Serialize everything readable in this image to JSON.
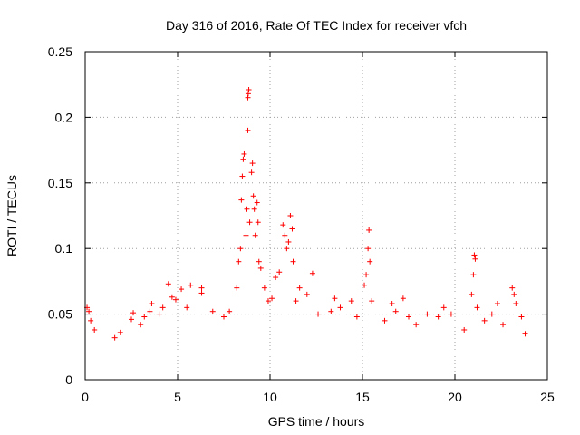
{
  "chart_data": {
    "type": "scatter",
    "title": "Day 316 of 2016, Rate Of TEC Index for receiver vfch",
    "xlabel": "GPS time / hours",
    "ylabel": "ROTI / TECUs",
    "xlim": [
      0,
      25
    ],
    "ylim": [
      0,
      0.25
    ],
    "x_ticks": [
      0,
      5,
      10,
      15,
      20,
      25
    ],
    "x_tick_labels": [
      "0",
      "5",
      "10",
      "15",
      "20",
      "25"
    ],
    "y_ticks": [
      0,
      0.05,
      0.1,
      0.15,
      0.2,
      0.25
    ],
    "y_tick_labels": [
      "0",
      "0.05",
      "0.1",
      "0.15",
      "0.2",
      "0.25"
    ],
    "grid": true,
    "marker": "+",
    "marker_color": "#ff0000",
    "series": [
      {
        "name": "ROTI",
        "points": [
          [
            0.1,
            0.055
          ],
          [
            0.2,
            0.052
          ],
          [
            0.3,
            0.045
          ],
          [
            0.5,
            0.038
          ],
          [
            1.6,
            0.032
          ],
          [
            1.9,
            0.036
          ],
          [
            2.5,
            0.046
          ],
          [
            2.6,
            0.051
          ],
          [
            3.0,
            0.042
          ],
          [
            3.2,
            0.048
          ],
          [
            3.6,
            0.058
          ],
          [
            3.5,
            0.052
          ],
          [
            4.0,
            0.05
          ],
          [
            4.2,
            0.055
          ],
          [
            4.5,
            0.073
          ],
          [
            4.7,
            0.063
          ],
          [
            4.9,
            0.061
          ],
          [
            5.2,
            0.069
          ],
          [
            5.5,
            0.055
          ],
          [
            5.7,
            0.072
          ],
          [
            6.3,
            0.066
          ],
          [
            6.3,
            0.07
          ],
          [
            6.9,
            0.052
          ],
          [
            7.5,
            0.048
          ],
          [
            7.8,
            0.052
          ],
          [
            8.2,
            0.07
          ],
          [
            8.3,
            0.09
          ],
          [
            8.4,
            0.1
          ],
          [
            8.45,
            0.137
          ],
          [
            8.5,
            0.155
          ],
          [
            8.55,
            0.168
          ],
          [
            8.6,
            0.172
          ],
          [
            8.7,
            0.11
          ],
          [
            8.75,
            0.13
          ],
          [
            8.8,
            0.19
          ],
          [
            8.8,
            0.215
          ],
          [
            8.85,
            0.221
          ],
          [
            8.82,
            0.218
          ],
          [
            8.9,
            0.12
          ],
          [
            9.0,
            0.158
          ],
          [
            9.05,
            0.165
          ],
          [
            9.1,
            0.14
          ],
          [
            9.15,
            0.13
          ],
          [
            9.2,
            0.11
          ],
          [
            9.3,
            0.135
          ],
          [
            9.35,
            0.12
          ],
          [
            9.4,
            0.09
          ],
          [
            9.5,
            0.085
          ],
          [
            9.7,
            0.07
          ],
          [
            9.9,
            0.06
          ],
          [
            10.1,
            0.062
          ],
          [
            10.3,
            0.078
          ],
          [
            10.5,
            0.082
          ],
          [
            10.7,
            0.118
          ],
          [
            10.8,
            0.11
          ],
          [
            10.9,
            0.1
          ],
          [
            11.0,
            0.105
          ],
          [
            11.1,
            0.125
          ],
          [
            11.2,
            0.115
          ],
          [
            11.25,
            0.09
          ],
          [
            11.4,
            0.06
          ],
          [
            11.6,
            0.07
          ],
          [
            12.0,
            0.065
          ],
          [
            12.3,
            0.081
          ],
          [
            12.6,
            0.05
          ],
          [
            13.3,
            0.052
          ],
          [
            13.5,
            0.062
          ],
          [
            13.8,
            0.055
          ],
          [
            14.4,
            0.06
          ],
          [
            14.7,
            0.048
          ],
          [
            15.1,
            0.072
          ],
          [
            15.2,
            0.08
          ],
          [
            15.3,
            0.1
          ],
          [
            15.35,
            0.114
          ],
          [
            15.4,
            0.09
          ],
          [
            15.5,
            0.06
          ],
          [
            16.2,
            0.045
          ],
          [
            16.6,
            0.058
          ],
          [
            16.8,
            0.052
          ],
          [
            17.2,
            0.062
          ],
          [
            17.5,
            0.048
          ],
          [
            17.9,
            0.042
          ],
          [
            18.5,
            0.05
          ],
          [
            19.1,
            0.048
          ],
          [
            19.4,
            0.055
          ],
          [
            19.8,
            0.05
          ],
          [
            20.5,
            0.038
          ],
          [
            20.9,
            0.065
          ],
          [
            21.0,
            0.08
          ],
          [
            21.05,
            0.095
          ],
          [
            21.1,
            0.092
          ],
          [
            21.2,
            0.055
          ],
          [
            21.6,
            0.045
          ],
          [
            22.0,
            0.05
          ],
          [
            22.3,
            0.058
          ],
          [
            22.6,
            0.042
          ],
          [
            23.1,
            0.07
          ],
          [
            23.2,
            0.065
          ],
          [
            23.3,
            0.058
          ],
          [
            23.6,
            0.048
          ],
          [
            23.8,
            0.035
          ]
        ]
      }
    ]
  }
}
